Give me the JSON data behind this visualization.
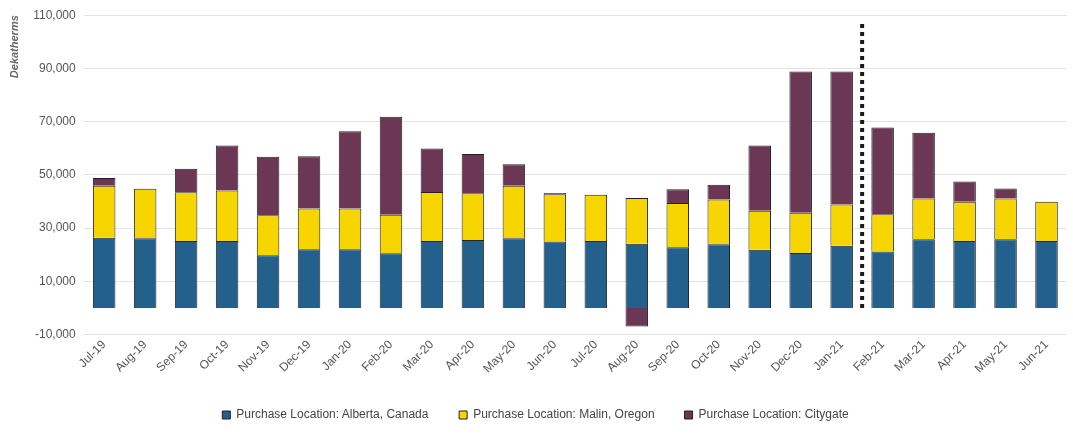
{
  "chart_data": {
    "type": "bar",
    "stacked": true,
    "ylabel": "Dekatherms",
    "categories": [
      "Jul-19",
      "Aug-19",
      "Sep-19",
      "Oct-19",
      "Nov-19",
      "Dec-19",
      "Jan-20",
      "Feb-20",
      "Mar-20",
      "Apr-20",
      "May-20",
      "Jun-20",
      "Jul-20",
      "Aug-20",
      "Sep-20",
      "Oct-20",
      "Nov-20",
      "Dec-20",
      "Jan-21",
      "Feb-21",
      "Mar-21",
      "Apr-21",
      "May-21",
      "Jun-21"
    ],
    "series": [
      {
        "name": "Purchase Location: Alberta, Canada",
        "color": "#23608c",
        "values": [
          26400,
          26200,
          25100,
          25100,
          19800,
          22000,
          22000,
          20500,
          25100,
          25500,
          26200,
          25000,
          25100,
          24100,
          22800,
          23900,
          21900,
          20600,
          23400,
          21200,
          25800,
          25100,
          25800,
          25100
        ]
      },
      {
        "name": "Purchase Location: Malin, Oregon",
        "color": "#f7d500",
        "values": [
          19500,
          18600,
          18400,
          19000,
          15000,
          15400,
          15400,
          14500,
          18500,
          17600,
          19700,
          17700,
          17400,
          17200,
          16600,
          16800,
          14600,
          15200,
          15500,
          14000,
          15300,
          14800,
          15300,
          14800
        ]
      },
      {
        "name": "Purchase Location: Citygate",
        "color": "#6b3755",
        "values": [
          2900,
          0,
          8800,
          16900,
          22000,
          19600,
          29000,
          36800,
          16300,
          14700,
          8100,
          500,
          0,
          -7000,
          5200,
          5600,
          24500,
          53000,
          49900,
          32600,
          24700,
          7600,
          3800,
          0
        ]
      }
    ],
    "ylim": [
      -10000,
      110000
    ],
    "yticks": [
      {
        "value": -10000,
        "label": "-10,000"
      },
      {
        "value": 10000,
        "label": "10,000"
      },
      {
        "value": 30000,
        "label": "30,000"
      },
      {
        "value": 50000,
        "label": "50,000"
      },
      {
        "value": 70000,
        "label": "70,000"
      },
      {
        "value": 90000,
        "label": "90,000"
      },
      {
        "value": 110000,
        "label": "110,000"
      }
    ],
    "ref_lines": [
      {
        "axis": "x",
        "value": "Feb-21",
        "color": "#1a1a1a",
        "line_style": "dotted"
      }
    ],
    "grid": "y",
    "legend": "bottom",
    "marker": "square"
  }
}
